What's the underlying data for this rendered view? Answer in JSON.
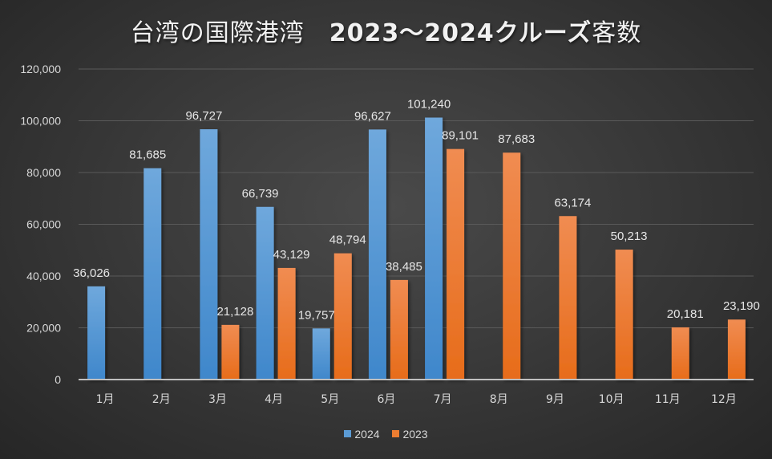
{
  "chart_data": {
    "type": "bar",
    "title_part1": "台湾の国際港湾",
    "title_part2": "2023～2024クルーズ",
    "title_part3": "客数",
    "title": "台湾の国際港湾　2023～2024クルーズ客数",
    "xlabel": "",
    "ylabel": "",
    "ylim": [
      0,
      120000
    ],
    "yticks": [
      0,
      20000,
      40000,
      60000,
      80000,
      100000,
      120000
    ],
    "ytick_labels": [
      "0",
      "20,000",
      "40,000",
      "60,000",
      "80,000",
      "100,000",
      "120,000"
    ],
    "grid": true,
    "legend_position": "bottom",
    "categories": [
      "1月",
      "2月",
      "3月",
      "4月",
      "5月",
      "6月",
      "7月",
      "8月",
      "9月",
      "10月",
      "11月",
      "12月"
    ],
    "series": [
      {
        "name": "2024",
        "color": "#5B9BD5",
        "values": [
          36026,
          81685,
          96727,
          66739,
          19757,
          96627,
          101240,
          null,
          null,
          null,
          null,
          null
        ],
        "labels": [
          "36,026",
          "81,685",
          "96,727",
          "66,739",
          "19,757",
          "96,627",
          "101,240",
          null,
          null,
          null,
          null,
          null
        ]
      },
      {
        "name": "2023",
        "color": "#ED7D31",
        "values": [
          null,
          null,
          21128,
          43129,
          48794,
          38485,
          89101,
          87683,
          63174,
          50213,
          20181,
          23190
        ],
        "labels": [
          null,
          null,
          "21,128",
          "43,129",
          "48,794",
          "38,485",
          "89,101",
          "87,683",
          "63,174",
          "50,213",
          "20,181",
          "23,190"
        ]
      }
    ]
  }
}
